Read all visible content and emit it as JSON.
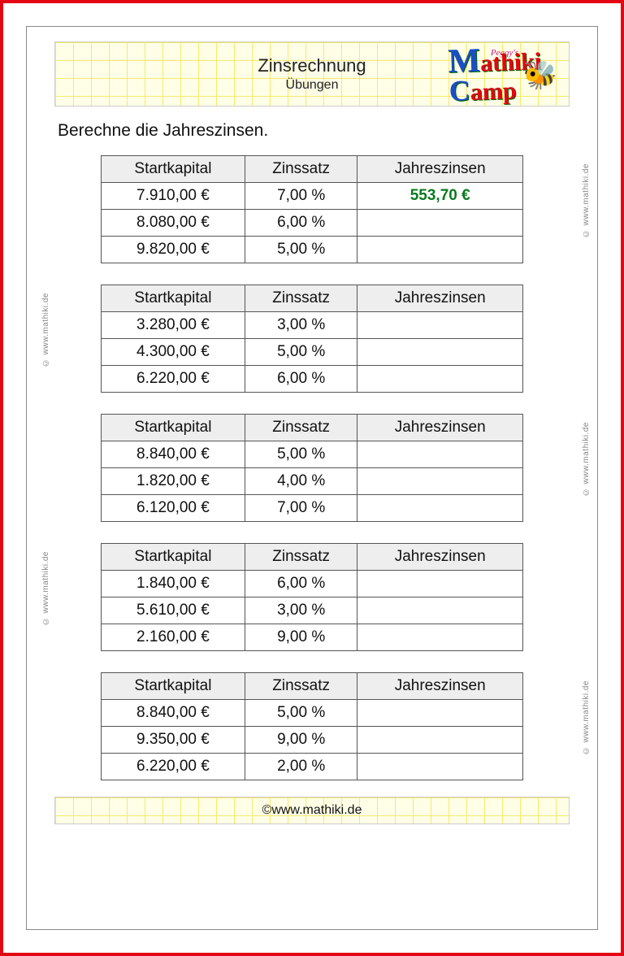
{
  "header": {
    "title": "Zinsrechnung",
    "subtitle": "Übungen",
    "logo_upper": "Peggy's",
    "logo_main_m": "M",
    "logo_main_rest1": "athiki",
    "logo_main_rest2": "amp"
  },
  "instruction": "Berechne die Jahreszinsen.",
  "columns": [
    "Startkapital",
    "Zinssatz",
    "Jahreszinsen"
  ],
  "watermark": "© www.mathiki.de",
  "footer": "©www.mathiki.de",
  "colors": {
    "frame": "#e30613",
    "answer": "#0a7a1e",
    "header_bg": "#ffffe8",
    "grid_line": "#f5e96a",
    "table_header_bg": "#eeeeee",
    "border": "#555555"
  },
  "tables": [
    {
      "watermark_side": "right",
      "rows": [
        {
          "capital": "7.910,00 €",
          "rate": "7,00 %",
          "interest": "553,70 €",
          "is_answer": true
        },
        {
          "capital": "8.080,00 €",
          "rate": "6,00 %",
          "interest": ""
        },
        {
          "capital": "9.820,00 €",
          "rate": "5,00 %",
          "interest": ""
        }
      ]
    },
    {
      "watermark_side": "left",
      "rows": [
        {
          "capital": "3.280,00 €",
          "rate": "3,00 %",
          "interest": ""
        },
        {
          "capital": "4.300,00 €",
          "rate": "5,00 %",
          "interest": ""
        },
        {
          "capital": "6.220,00 €",
          "rate": "6,00 %",
          "interest": ""
        }
      ]
    },
    {
      "watermark_side": "right",
      "rows": [
        {
          "capital": "8.840,00 €",
          "rate": "5,00 %",
          "interest": ""
        },
        {
          "capital": "1.820,00 €",
          "rate": "4,00 %",
          "interest": ""
        },
        {
          "capital": "6.120,00 €",
          "rate": "7,00 %",
          "interest": ""
        }
      ]
    },
    {
      "watermark_side": "left",
      "rows": [
        {
          "capital": "1.840,00 €",
          "rate": "6,00 %",
          "interest": ""
        },
        {
          "capital": "5.610,00 €",
          "rate": "3,00 %",
          "interest": ""
        },
        {
          "capital": "2.160,00 €",
          "rate": "9,00 %",
          "interest": ""
        }
      ]
    },
    {
      "watermark_side": "right",
      "rows": [
        {
          "capital": "8.840,00 €",
          "rate": "5,00 %",
          "interest": ""
        },
        {
          "capital": "9.350,00 €",
          "rate": "9,00 %",
          "interest": ""
        },
        {
          "capital": "6.220,00 €",
          "rate": "2,00 %",
          "interest": ""
        }
      ]
    }
  ]
}
